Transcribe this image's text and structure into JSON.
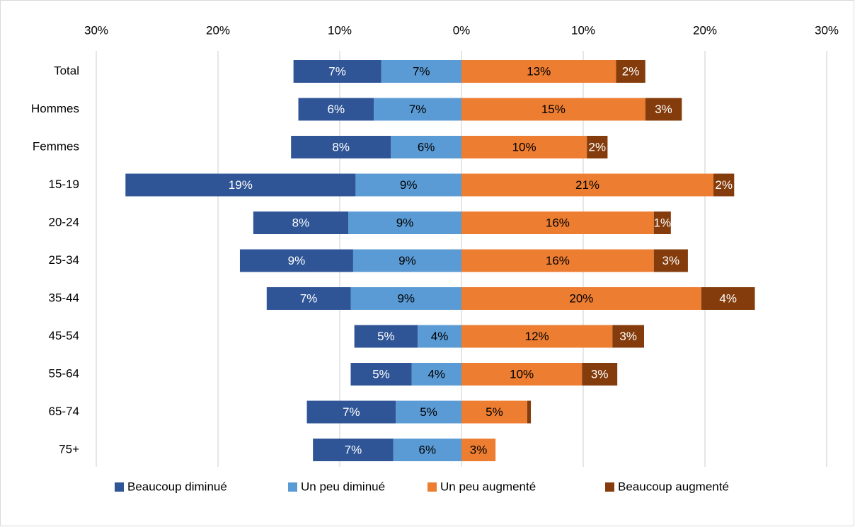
{
  "chart_data": {
    "type": "diverging-bar",
    "categories": [
      "Total",
      "Hommes",
      "Femmes",
      "15-19",
      "20-24",
      "25-34",
      "35-44",
      "45-54",
      "55-64",
      "65-74",
      "75+"
    ],
    "series": [
      {
        "name": "Beaucoup diminué",
        "color": "#2f5597",
        "label_color": "#ffffff",
        "values": [
          -7.2,
          -6.2,
          -8.2,
          -18.9,
          -7.8,
          -9.3,
          -6.9,
          -5.2,
          -5.0,
          -7.3,
          -6.6
        ],
        "value_labels": [
          "7%",
          "6%",
          "8%",
          "19%",
          "8%",
          "9%",
          "7%",
          "5%",
          "5%",
          "7%",
          "7%"
        ]
      },
      {
        "name": "Un peu diminué",
        "color": "#5b9bd5",
        "label_color": "#000000",
        "values": [
          -6.6,
          -7.2,
          -5.8,
          -8.7,
          -9.3,
          -8.9,
          -9.1,
          -3.6,
          -4.1,
          -5.4,
          -5.6
        ],
        "value_labels": [
          "7%",
          "7%",
          "6%",
          "9%",
          "9%",
          "9%",
          "9%",
          "4%",
          "4%",
          "5%",
          "6%"
        ]
      },
      {
        "name": "Un peu augmenté",
        "color": "#ed7d31",
        "label_color": "#000000",
        "values": [
          12.7,
          15.1,
          10.3,
          20.7,
          15.8,
          15.8,
          19.7,
          12.4,
          9.9,
          5.4,
          2.8
        ],
        "value_labels": [
          "13%",
          "15%",
          "10%",
          "21%",
          "16%",
          "16%",
          "20%",
          "12%",
          "10%",
          "5%",
          "3%"
        ]
      },
      {
        "name": "Beaucoup augmenté",
        "color": "#843c0c",
        "label_color": "#ffffff",
        "values": [
          2.4,
          3.0,
          1.7,
          1.7,
          1.4,
          2.8,
          4.4,
          2.6,
          2.9,
          0.3,
          0
        ],
        "value_labels": [
          "2%",
          "3%",
          "2%",
          "2%",
          "1%",
          "3%",
          "4%",
          "3%",
          "3%",
          null,
          null
        ]
      }
    ],
    "xlim": [
      -30,
      30
    ],
    "xticks": [
      {
        "value": -30,
        "label": "30%"
      },
      {
        "value": -20,
        "label": "20%"
      },
      {
        "value": -10,
        "label": "10%"
      },
      {
        "value": 0,
        "label": "0%"
      },
      {
        "value": 10,
        "label": "10%"
      },
      {
        "value": 20,
        "label": "20%"
      },
      {
        "value": 30,
        "label": "30%"
      }
    ],
    "grid": true
  }
}
